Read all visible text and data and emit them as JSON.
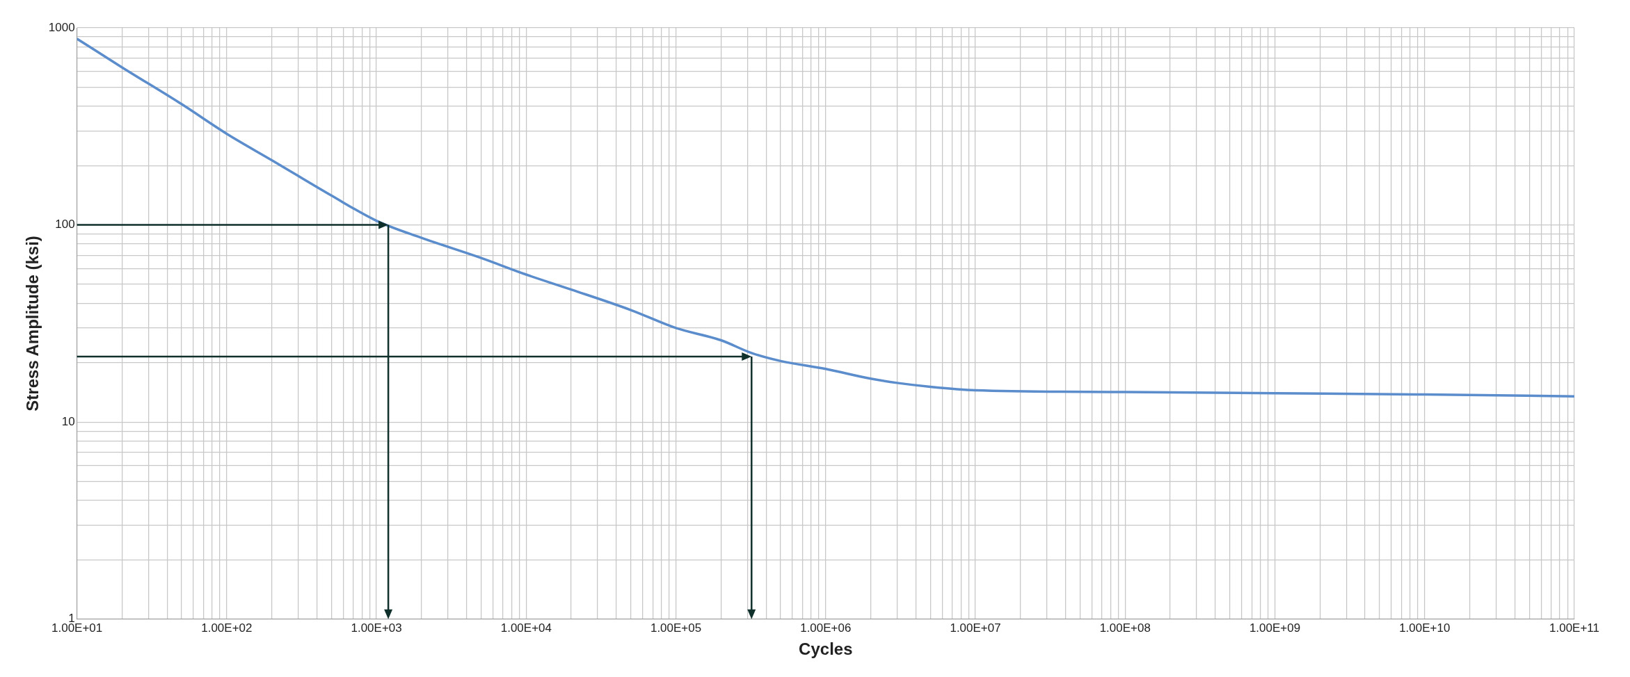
{
  "chart_data": {
    "type": "line",
    "xlabel": "Cycles",
    "ylabel": "Stress Amplitude (ksi)",
    "log": "xy",
    "grid": true,
    "legend": false,
    "marker": "none",
    "line_style": "solid",
    "x": [
      10,
      20,
      50,
      100,
      200,
      500,
      1000,
      2000,
      5000,
      10000,
      20000,
      50000,
      100000,
      200000,
      320000,
      500000,
      1000000,
      2000000,
      3000000,
      5000000,
      10000000,
      100000000,
      1000000000,
      10000000000,
      100000000000
    ],
    "series": [
      {
        "color": "#5b8ccb",
        "values": [
          880,
          630,
          410,
          290,
          213,
          141,
          105,
          86,
          68,
          56,
          47,
          37,
          30,
          26,
          22.4,
          20.4,
          18.6,
          16.6,
          15.8,
          15.1,
          14.5,
          14.2,
          14,
          13.8,
          13.5
        ]
      }
    ],
    "xlim": [
      10,
      100000000000
    ],
    "ylim": [
      1,
      1000
    ],
    "xticks": [
      {
        "value": 10.0,
        "label": "1.00E+01"
      },
      {
        "value": 20.0,
        "label": null
      },
      {
        "value": 30.0,
        "label": null
      },
      {
        "value": 40.0,
        "label": null
      },
      {
        "value": 50.0,
        "label": null
      },
      {
        "value": 60.0,
        "label": null
      },
      {
        "value": 70.0,
        "label": null
      },
      {
        "value": 80.0,
        "label": null
      },
      {
        "value": 90.0,
        "label": null
      },
      {
        "value": 100.0,
        "label": "1.00E+02"
      },
      {
        "value": 200.0,
        "label": null
      },
      {
        "value": 300.0,
        "label": null
      },
      {
        "value": 400.0,
        "label": null
      },
      {
        "value": 500.0,
        "label": null
      },
      {
        "value": 600.0,
        "label": null
      },
      {
        "value": 700.0,
        "label": null
      },
      {
        "value": 800.0,
        "label": null
      },
      {
        "value": 900.0,
        "label": null
      },
      {
        "value": 1000.0,
        "label": "1.00E+03"
      },
      {
        "value": 2000.0,
        "label": null
      },
      {
        "value": 3000.0,
        "label": null
      },
      {
        "value": 4000.0,
        "label": null
      },
      {
        "value": 5000.0,
        "label": null
      },
      {
        "value": 6000.0,
        "label": null
      },
      {
        "value": 7000.0,
        "label": null
      },
      {
        "value": 8000.0,
        "label": null
      },
      {
        "value": 9000.0,
        "label": null
      },
      {
        "value": 10000.0,
        "label": "1.00E+04"
      },
      {
        "value": 20000.0,
        "label": null
      },
      {
        "value": 30000.0,
        "label": null
      },
      {
        "value": 40000.0,
        "label": null
      },
      {
        "value": 50000.0,
        "label": null
      },
      {
        "value": 60000.0,
        "label": null
      },
      {
        "value": 70000.0,
        "label": null
      },
      {
        "value": 80000.0,
        "label": null
      },
      {
        "value": 90000.0,
        "label": null
      },
      {
        "value": 100000.0,
        "label": "1.00E+05"
      },
      {
        "value": 200000.0,
        "label": null
      },
      {
        "value": 300000.0,
        "label": null
      },
      {
        "value": 400000.0,
        "label": null
      },
      {
        "value": 500000.0,
        "label": null
      },
      {
        "value": 600000.0,
        "label": null
      },
      {
        "value": 700000.0,
        "label": null
      },
      {
        "value": 800000.0,
        "label": null
      },
      {
        "value": 900000.0,
        "label": null
      },
      {
        "value": 1000000.0,
        "label": "1.00E+06"
      },
      {
        "value": 2000000.0,
        "label": null
      },
      {
        "value": 3000000.0,
        "label": null
      },
      {
        "value": 4000000.0,
        "label": null
      },
      {
        "value": 5000000.0,
        "label": null
      },
      {
        "value": 6000000.0,
        "label": null
      },
      {
        "value": 7000000.0,
        "label": null
      },
      {
        "value": 8000000.0,
        "label": null
      },
      {
        "value": 9000000.0,
        "label": null
      },
      {
        "value": 10000000.0,
        "label": "1.00E+07"
      },
      {
        "value": 20000000.0,
        "label": null
      },
      {
        "value": 30000000.0,
        "label": null
      },
      {
        "value": 40000000.0,
        "label": null
      },
      {
        "value": 50000000.0,
        "label": null
      },
      {
        "value": 60000000.0,
        "label": null
      },
      {
        "value": 70000000.0,
        "label": null
      },
      {
        "value": 80000000.0,
        "label": null
      },
      {
        "value": 90000000.0,
        "label": null
      },
      {
        "value": 100000000.0,
        "label": "1.00E+08"
      },
      {
        "value": 200000000.0,
        "label": null
      },
      {
        "value": 300000000.0,
        "label": null
      },
      {
        "value": 400000000.0,
        "label": null
      },
      {
        "value": 500000000.0,
        "label": null
      },
      {
        "value": 600000000.0,
        "label": null
      },
      {
        "value": 700000000.0,
        "label": null
      },
      {
        "value": 800000000.0,
        "label": null
      },
      {
        "value": 900000000.0,
        "label": null
      },
      {
        "value": 1000000000.0,
        "label": "1.00E+09"
      },
      {
        "value": 2000000000.0,
        "label": null
      },
      {
        "value": 3000000000.0,
        "label": null
      },
      {
        "value": 4000000000.0,
        "label": null
      },
      {
        "value": 5000000000.0,
        "label": null
      },
      {
        "value": 6000000000.0,
        "label": null
      },
      {
        "value": 7000000000.0,
        "label": null
      },
      {
        "value": 8000000000.0,
        "label": null
      },
      {
        "value": 9000000000.0,
        "label": null
      },
      {
        "value": 10000000000.0,
        "label": "1.00E+10"
      },
      {
        "value": 20000000000.0,
        "label": null
      },
      {
        "value": 30000000000.0,
        "label": null
      },
      {
        "value": 40000000000.0,
        "label": null
      },
      {
        "value": 50000000000.0,
        "label": null
      },
      {
        "value": 60000000000.0,
        "label": null
      },
      {
        "value": 70000000000.0,
        "label": null
      },
      {
        "value": 80000000000.0,
        "label": null
      },
      {
        "value": 90000000000.0,
        "label": null
      },
      {
        "value": 100000000000.0,
        "label": "1.00E+11"
      }
    ],
    "yticks": [
      1,
      {
        "value": 2,
        "label": null
      },
      {
        "value": 3,
        "label": null
      },
      {
        "value": 4,
        "label": null
      },
      {
        "value": 5,
        "label": null
      },
      {
        "value": 6,
        "label": null
      },
      {
        "value": 7,
        "label": null
      },
      {
        "value": 8,
        "label": null
      },
      {
        "value": 9,
        "label": null
      },
      10,
      {
        "value": 20,
        "label": null
      },
      {
        "value": 30,
        "label": null
      },
      {
        "value": 40,
        "label": null
      },
      {
        "value": 50,
        "label": null
      },
      {
        "value": 60,
        "label": null
      },
      {
        "value": 70,
        "label": null
      },
      {
        "value": 80,
        "label": null
      },
      {
        "value": 90,
        "label": null
      },
      100,
      {
        "value": 200,
        "label": null
      },
      {
        "value": 300,
        "label": null
      },
      {
        "value": 400,
        "label": null
      },
      {
        "value": 500,
        "label": null
      },
      {
        "value": 600,
        "label": null
      },
      {
        "value": 700,
        "label": null
      },
      {
        "value": 800,
        "label": null
      },
      {
        "value": 900,
        "label": null
      },
      1000
    ]
  }
}
